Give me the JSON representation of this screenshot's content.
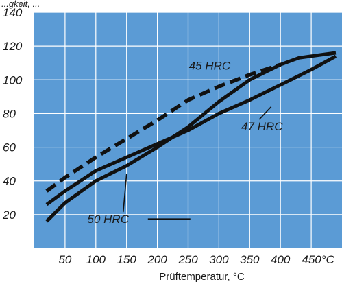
{
  "top_fragment": "...gkeit, ...",
  "chart_data": {
    "type": "line",
    "xlabel": "Prüftemperatur, °C",
    "ylabel": "",
    "xlim": [
      0,
      500
    ],
    "ylim": [
      0,
      140
    ],
    "grid": true,
    "colors": {
      "background": "#5b9bd5",
      "grid": "#ffffff",
      "line": "#111111"
    },
    "x_ticks": [
      {
        "value": 50,
        "label": "50"
      },
      {
        "value": 100,
        "label": "100"
      },
      {
        "value": 150,
        "label": "150"
      },
      {
        "value": 200,
        "label": "200"
      },
      {
        "value": 250,
        "label": "250"
      },
      {
        "value": 300,
        "label": "300"
      },
      {
        "value": 350,
        "label": "350"
      },
      {
        "value": 400,
        "label": "400"
      },
      {
        "value": 450,
        "label": "450°C"
      }
    ],
    "y_ticks": [
      {
        "value": 20,
        "label": "20"
      },
      {
        "value": 40,
        "label": "40"
      },
      {
        "value": 60,
        "label": "60"
      },
      {
        "value": 80,
        "label": "80"
      },
      {
        "value": 100,
        "label": "100"
      },
      {
        "value": 120,
        "label": "120"
      },
      {
        "value": 140,
        "label": "140"
      }
    ],
    "series": [
      {
        "name": "45 HRC",
        "style": "dashed",
        "points": [
          [
            20,
            34
          ],
          [
            50,
            42
          ],
          [
            100,
            54
          ],
          [
            150,
            65
          ],
          [
            200,
            76
          ],
          [
            250,
            88
          ],
          [
            300,
            96
          ],
          [
            350,
            103
          ],
          [
            400,
            109
          ]
        ],
        "label_value": [
          285,
          106
        ]
      },
      {
        "name": "47 HRC",
        "style": "solid",
        "points": [
          [
            20,
            26
          ],
          [
            50,
            34
          ],
          [
            100,
            46
          ],
          [
            150,
            54
          ],
          [
            200,
            62
          ],
          [
            250,
            70
          ],
          [
            300,
            80
          ],
          [
            350,
            88
          ],
          [
            400,
            97
          ],
          [
            450,
            106
          ],
          [
            490,
            114
          ]
        ],
        "label_value": [
          370,
          70
        ]
      },
      {
        "name": "50 HRC",
        "style": "solid",
        "points": [
          [
            20,
            16
          ],
          [
            50,
            27
          ],
          [
            100,
            40
          ],
          [
            150,
            49
          ],
          [
            200,
            60
          ],
          [
            250,
            72
          ],
          [
            300,
            87
          ],
          [
            350,
            100
          ],
          [
            400,
            109
          ],
          [
            430,
            113
          ],
          [
            470,
            115
          ],
          [
            490,
            116
          ]
        ],
        "label_value": [
          120,
          15
        ]
      }
    ]
  }
}
